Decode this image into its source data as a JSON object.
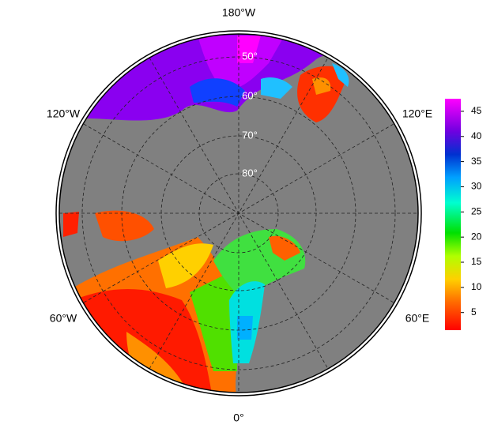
{
  "map": {
    "lon_labels": {
      "top": "180°W",
      "upper_left": "120°W",
      "upper_right": "120°E",
      "lower_left": "60°W",
      "lower_right": "60°E",
      "bottom": "0°"
    },
    "lat_labels": [
      "50°",
      "60°",
      "70°",
      "80°"
    ]
  },
  "colorbar": {
    "range": [
      1.5,
      47.5
    ],
    "ticks": [
      5,
      10,
      15,
      20,
      25,
      30,
      35,
      40,
      45
    ]
  }
}
